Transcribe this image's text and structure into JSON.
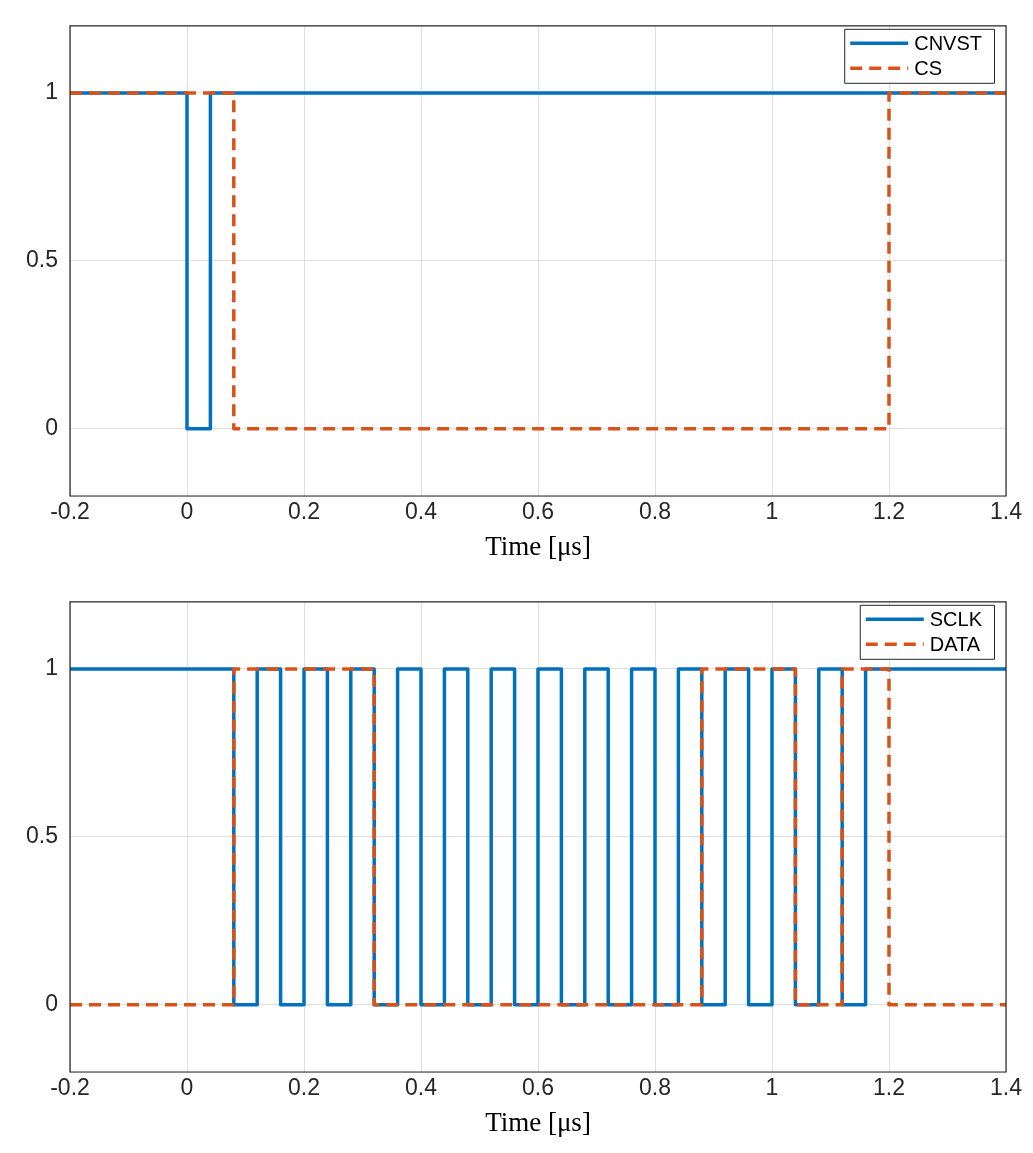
{
  "chart_data": [
    {
      "type": "step",
      "xlabel": "Time [μs]",
      "xlim": [
        -0.2,
        1.4
      ],
      "xticks": [
        -0.2,
        0,
        0.2,
        0.4,
        0.6,
        0.8,
        1,
        1.2,
        1.4
      ],
      "ylim": [
        -0.2,
        1.2
      ],
      "yticks": [
        0,
        0.5,
        1
      ],
      "grid": true,
      "legend": "top right",
      "series": [
        {
          "name": "CNVST",
          "color": "#0072bd",
          "line_style": "solid",
          "x": [
            -0.2,
            0,
            0.04,
            1.4
          ],
          "values": [
            1,
            0,
            1,
            1
          ]
        },
        {
          "name": "CS",
          "color": "#d95319",
          "line_style": "dashed",
          "x": [
            -0.2,
            0.08,
            1.2,
            1.4
          ],
          "values": [
            1,
            0,
            1,
            1
          ]
        }
      ]
    },
    {
      "type": "step",
      "xlabel": "Time [μs]",
      "xlim": [
        -0.2,
        1.4
      ],
      "xticks": [
        -0.2,
        0,
        0.2,
        0.4,
        0.6,
        0.8,
        1,
        1.2,
        1.4
      ],
      "ylim": [
        -0.2,
        1.2
      ],
      "yticks": [
        0,
        0.5,
        1
      ],
      "grid": true,
      "legend": "top right",
      "series": [
        {
          "name": "SCLK",
          "color": "#0072bd",
          "line_style": "solid",
          "x": [
            -0.2,
            0.08,
            0.12,
            0.16,
            0.2,
            0.24,
            0.28,
            0.32,
            0.36,
            0.4,
            0.44,
            0.48,
            0.52,
            0.56,
            0.6,
            0.64,
            0.68,
            0.72,
            0.76,
            0.8,
            0.84,
            0.88,
            0.92,
            0.96,
            1,
            1.04,
            1.08,
            1.12,
            1.16,
            1.4
          ],
          "values": [
            1,
            0,
            1,
            0,
            1,
            0,
            1,
            0,
            1,
            0,
            1,
            0,
            1,
            0,
            1,
            0,
            1,
            0,
            1,
            0,
            1,
            0,
            1,
            0,
            1,
            0,
            1,
            0,
            1,
            1
          ]
        },
        {
          "name": "DATA",
          "color": "#d95319",
          "line_style": "dashed",
          "x": [
            -0.2,
            0.08,
            0.32,
            0.88,
            1.04,
            1.12,
            1.2,
            1.4
          ],
          "values": [
            0,
            1,
            0,
            1,
            0,
            1,
            0,
            0
          ]
        }
      ]
    }
  ]
}
